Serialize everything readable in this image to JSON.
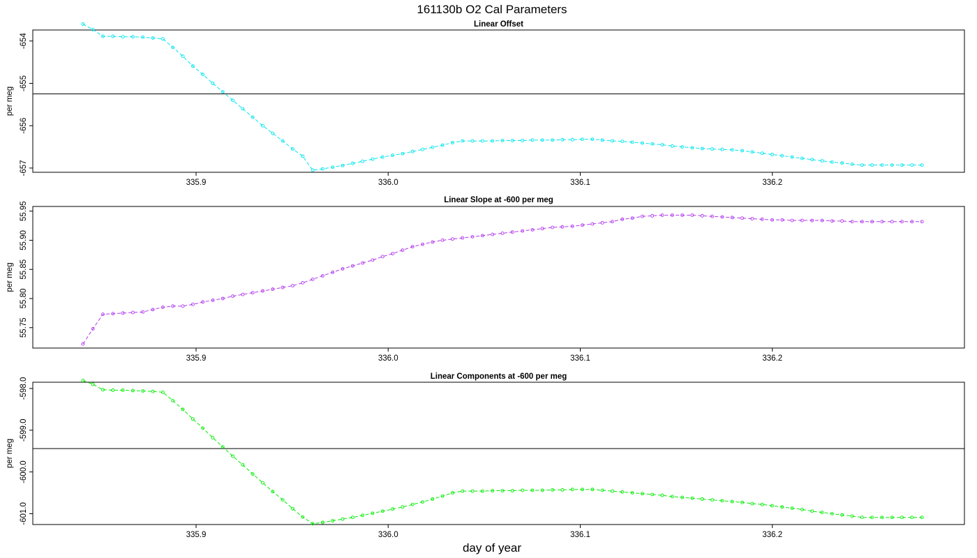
{
  "figure": {
    "title": "161130b   O2 Cal Parameters",
    "xlabel": "day of year"
  },
  "chart_data": [
    {
      "type": "line",
      "title": "Linear Offset",
      "xlabel": "",
      "ylabel": "per meg",
      "color": "#00e5ee",
      "xlim": [
        335.815,
        336.3
      ],
      "ylim": [
        -657.1,
        -653.74
      ],
      "x_ticks": [
        335.9,
        336.0,
        336.1,
        336.2
      ],
      "x_tick_labels": [
        "335.9",
        "336.0",
        "336.1",
        "336.2"
      ],
      "y_ticks": [
        -654,
        -655,
        -656,
        -657
      ],
      "y_tick_labels": [
        "-654",
        "-655",
        "-656",
        "-657"
      ],
      "reference_line": -655.25,
      "series": [
        {
          "x": [
            335.8411,
            335.8463,
            335.8515,
            335.8567,
            335.8619,
            335.8671,
            335.8723,
            335.8775,
            335.8827,
            335.8879,
            335.8931,
            335.8983,
            335.9035,
            335.9087,
            335.9139,
            335.9191,
            335.9243,
            335.9295,
            335.9347,
            335.9399,
            335.9451,
            335.9503,
            335.9555,
            335.9607,
            335.9659,
            335.9711,
            335.9763,
            335.9815,
            335.9867,
            335.9919,
            335.9971,
            336.0023,
            336.0075,
            336.0127,
            336.0179,
            336.0231,
            336.0283,
            336.0335,
            336.0387,
            336.0439,
            336.0491,
            336.0543,
            336.0595,
            336.0647,
            336.0699,
            336.0751,
            336.0803,
            336.0855,
            336.0907,
            336.0959,
            336.1011,
            336.1063,
            336.1115,
            336.1167,
            336.1219,
            336.1271,
            336.1323,
            336.1375,
            336.1427,
            336.1479,
            336.1531,
            336.1583,
            336.1635,
            336.1687,
            336.1739,
            336.1791,
            336.1843,
            336.1895,
            336.1947,
            336.1999,
            336.2051,
            336.2103,
            336.2155,
            336.2207,
            336.2259,
            336.2311,
            336.2363,
            336.2415,
            336.2467,
            336.2519,
            336.2571,
            336.2623,
            336.2675,
            336.2727,
            336.2779
          ],
          "values": [
            -653.6,
            -653.73,
            -653.89,
            -653.89,
            -653.9,
            -653.9,
            -653.91,
            -653.93,
            -653.95,
            -654.15,
            -654.36,
            -654.59,
            -654.79,
            -655.0,
            -655.2,
            -655.4,
            -655.6,
            -655.8,
            -656.0,
            -656.18,
            -656.36,
            -656.55,
            -656.72,
            -657.05,
            -657.02,
            -656.98,
            -656.94,
            -656.89,
            -656.84,
            -656.79,
            -656.74,
            -656.7,
            -656.66,
            -656.61,
            -656.56,
            -656.51,
            -656.46,
            -656.4,
            -656.36,
            -656.36,
            -656.36,
            -656.36,
            -656.35,
            -656.35,
            -656.35,
            -656.34,
            -656.34,
            -656.34,
            -656.33,
            -656.33,
            -656.32,
            -656.32,
            -656.34,
            -656.36,
            -656.37,
            -656.39,
            -656.41,
            -656.43,
            -656.45,
            -656.48,
            -656.5,
            -656.52,
            -656.54,
            -656.55,
            -656.56,
            -656.57,
            -656.59,
            -656.62,
            -656.65,
            -656.68,
            -656.71,
            -656.74,
            -656.77,
            -656.8,
            -656.83,
            -656.86,
            -656.88,
            -656.91,
            -656.93,
            -656.93,
            -656.93,
            -656.93,
            -656.93,
            -656.93,
            -656.93
          ]
        }
      ]
    },
    {
      "type": "line",
      "title": "Linear Slope at -600 per meg",
      "xlabel": "",
      "ylabel": "per meg",
      "color": "#b23aee",
      "xlim": [
        335.815,
        336.3
      ],
      "ylim": [
        55.715,
        55.958
      ],
      "x_ticks": [
        335.9,
        336.0,
        336.1,
        336.2
      ],
      "x_tick_labels": [
        "335.9",
        "336.0",
        "336.1",
        "336.2"
      ],
      "y_ticks": [
        55.75,
        55.8,
        55.85,
        55.9,
        55.95
      ],
      "y_tick_labels": [
        "55.75",
        "55.80",
        "55.85",
        "55.90",
        "55.95"
      ],
      "reference_line": null,
      "series": [
        {
          "x": [
            335.8411,
            335.8463,
            335.8515,
            335.8567,
            335.8619,
            335.8671,
            335.8723,
            335.8775,
            335.8827,
            335.8879,
            335.8931,
            335.8983,
            335.9035,
            335.9087,
            335.9139,
            335.9191,
            335.9243,
            335.9295,
            335.9347,
            335.9399,
            335.9451,
            335.9503,
            335.9555,
            335.9607,
            335.9659,
            335.9711,
            335.9763,
            335.9815,
            335.9867,
            335.9919,
            335.9971,
            336.0023,
            336.0075,
            336.0127,
            336.0179,
            336.0231,
            336.0283,
            336.0335,
            336.0387,
            336.0439,
            336.0491,
            336.0543,
            336.0595,
            336.0647,
            336.0699,
            336.0751,
            336.0803,
            336.0855,
            336.0907,
            336.0959,
            336.1011,
            336.1063,
            336.1115,
            336.1167,
            336.1219,
            336.1271,
            336.1323,
            336.1375,
            336.1427,
            336.1479,
            336.1531,
            336.1583,
            336.1635,
            336.1687,
            336.1739,
            336.1791,
            336.1843,
            336.1895,
            336.1947,
            336.1999,
            336.2051,
            336.2103,
            336.2155,
            336.2207,
            336.2259,
            336.2311,
            336.2363,
            336.2415,
            336.2467,
            336.2519,
            336.2571,
            336.2623,
            336.2675,
            336.2727,
            336.2779
          ],
          "values": [
            55.722,
            55.748,
            55.773,
            55.774,
            55.775,
            55.776,
            55.777,
            55.781,
            55.785,
            55.787,
            55.787,
            55.79,
            55.794,
            55.797,
            55.8,
            55.804,
            55.807,
            55.81,
            55.813,
            55.816,
            55.819,
            55.822,
            55.827,
            55.833,
            55.839,
            55.845,
            55.851,
            55.856,
            55.861,
            55.866,
            55.872,
            55.877,
            55.883,
            55.889,
            55.893,
            55.897,
            55.9,
            55.902,
            55.904,
            55.906,
            55.908,
            55.91,
            55.912,
            55.914,
            55.916,
            55.918,
            55.92,
            55.922,
            55.923,
            55.924,
            55.926,
            55.928,
            55.93,
            55.932,
            55.936,
            55.938,
            55.941,
            55.942,
            55.943,
            55.943,
            55.943,
            55.943,
            55.942,
            55.941,
            55.94,
            55.939,
            55.938,
            55.937,
            55.936,
            55.935,
            55.935,
            55.934,
            55.934,
            55.934,
            55.934,
            55.933,
            55.933,
            55.932,
            55.932,
            55.932,
            55.932,
            55.932,
            55.932,
            55.932,
            55.932
          ]
        }
      ]
    },
    {
      "type": "line",
      "title": "Linear Components at -600 per meg",
      "xlabel": "",
      "ylabel": "per meg",
      "color": "#00ee00",
      "xlim": [
        335.815,
        336.3
      ],
      "ylim": [
        -601.26,
        -597.85
      ],
      "x_ticks": [
        335.9,
        336.0,
        336.1,
        336.2
      ],
      "x_tick_labels": [
        "335.9",
        "336.0",
        "336.1",
        "336.2"
      ],
      "y_ticks": [
        -598.0,
        -599.0,
        -600.0,
        -601.0
      ],
      "y_tick_labels": [
        "-598.0",
        "-599.0",
        "-600.0",
        "-601.0"
      ],
      "reference_line": -599.44,
      "series": [
        {
          "x": [
            335.8411,
            335.8463,
            335.8515,
            335.8567,
            335.8619,
            335.8671,
            335.8723,
            335.8775,
            335.8827,
            335.8879,
            335.8931,
            335.8983,
            335.9035,
            335.9087,
            335.9139,
            335.9191,
            335.9243,
            335.9295,
            335.9347,
            335.9399,
            335.9451,
            335.9503,
            335.9555,
            335.9607,
            335.9659,
            335.9711,
            335.9763,
            335.9815,
            335.9867,
            335.9919,
            335.9971,
            336.0023,
            336.0075,
            336.0127,
            336.0179,
            336.0231,
            336.0283,
            336.0335,
            336.0387,
            336.0439,
            336.0491,
            336.0543,
            336.0595,
            336.0647,
            336.0699,
            336.0751,
            336.0803,
            336.0855,
            336.0907,
            336.0959,
            336.1011,
            336.1063,
            336.1115,
            336.1167,
            336.1219,
            336.1271,
            336.1323,
            336.1375,
            336.1427,
            336.1479,
            336.1531,
            336.1583,
            336.1635,
            336.1687,
            336.1739,
            336.1791,
            336.1843,
            336.1895,
            336.1947,
            336.1999,
            336.2051,
            336.2103,
            336.2155,
            336.2207,
            336.2259,
            336.2311,
            336.2363,
            336.2415,
            336.2467,
            336.2519,
            336.2571,
            336.2623,
            336.2675,
            336.2727,
            336.2779
          ],
          "values": [
            -597.81,
            -597.9,
            -598.03,
            -598.04,
            -598.04,
            -598.05,
            -598.06,
            -598.07,
            -598.09,
            -598.29,
            -598.5,
            -598.73,
            -598.95,
            -599.18,
            -599.4,
            -599.62,
            -599.83,
            -600.05,
            -600.26,
            -600.47,
            -600.67,
            -600.88,
            -601.08,
            -601.24,
            -601.21,
            -601.17,
            -601.13,
            -601.09,
            -601.04,
            -600.99,
            -600.94,
            -600.89,
            -600.84,
            -600.78,
            -600.72,
            -600.65,
            -600.58,
            -600.5,
            -600.46,
            -600.46,
            -600.46,
            -600.45,
            -600.45,
            -600.45,
            -600.44,
            -600.44,
            -600.44,
            -600.43,
            -600.43,
            -600.42,
            -600.42,
            -600.42,
            -600.44,
            -600.46,
            -600.48,
            -600.5,
            -600.52,
            -600.54,
            -600.56,
            -600.59,
            -600.61,
            -600.63,
            -600.65,
            -600.67,
            -600.69,
            -600.71,
            -600.73,
            -600.76,
            -600.78,
            -600.81,
            -600.84,
            -600.87,
            -600.9,
            -600.94,
            -600.97,
            -601.0,
            -601.03,
            -601.06,
            -601.09,
            -601.09,
            -601.09,
            -601.09,
            -601.09,
            -601.09,
            -601.09
          ]
        }
      ]
    }
  ]
}
